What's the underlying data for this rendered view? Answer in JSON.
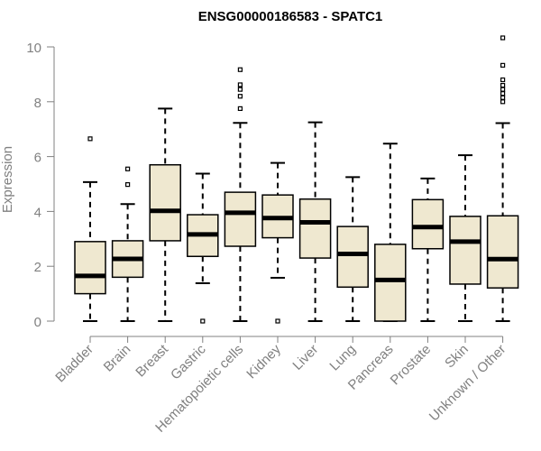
{
  "chart_data": {
    "type": "box",
    "title": "ENSG00000186583 - SPATC1",
    "xlabel": "",
    "ylabel": "Expression",
    "ylim": [
      0,
      10.4
    ],
    "yticks": [
      0,
      2,
      4,
      6,
      8,
      10
    ],
    "grid": false,
    "legend": "none",
    "box_fill": "#efe8d0",
    "categories": [
      "Bladder",
      "Brain",
      "Breast",
      "Gastric",
      "Hematopoietic cells",
      "Kidney",
      "Liver",
      "Lung",
      "Pancreas",
      "Prostate",
      "Skin",
      "Unknown / Other"
    ],
    "boxes": [
      {
        "min": 0.0,
        "q1": 1.0,
        "median": 1.65,
        "q3": 2.9,
        "max": 5.07,
        "outliers": [
          6.65
        ]
      },
      {
        "min": 0.0,
        "q1": 1.6,
        "median": 2.27,
        "q3": 2.93,
        "max": 4.27,
        "outliers": [
          4.98,
          5.55
        ]
      },
      {
        "min": 0.0,
        "q1": 2.93,
        "median": 4.02,
        "q3": 5.7,
        "max": 7.75,
        "outliers": []
      },
      {
        "min": 1.38,
        "q1": 2.36,
        "median": 3.16,
        "q3": 3.88,
        "max": 5.38,
        "outliers": [
          0.0
        ]
      },
      {
        "min": 0.0,
        "q1": 2.73,
        "median": 3.95,
        "q3": 4.7,
        "max": 7.23,
        "outliers": [
          7.75,
          8.2,
          8.45,
          8.62,
          9.17
        ]
      },
      {
        "min": 1.58,
        "q1": 3.04,
        "median": 3.76,
        "q3": 4.6,
        "max": 5.77,
        "outliers": [
          0.0
        ]
      },
      {
        "min": 0.0,
        "q1": 2.3,
        "median": 3.6,
        "q3": 4.45,
        "max": 7.25,
        "outliers": []
      },
      {
        "min": 0.0,
        "q1": 1.24,
        "median": 2.45,
        "q3": 3.45,
        "max": 5.25,
        "outliers": []
      },
      {
        "min": 0.0,
        "q1": 0.0,
        "median": 1.5,
        "q3": 2.8,
        "max": 6.47,
        "outliers": []
      },
      {
        "min": 0.0,
        "q1": 2.64,
        "median": 3.43,
        "q3": 4.43,
        "max": 5.2,
        "outliers": []
      },
      {
        "min": 0.0,
        "q1": 1.35,
        "median": 2.9,
        "q3": 3.82,
        "max": 6.05,
        "outliers": []
      },
      {
        "min": 0.0,
        "q1": 1.21,
        "median": 2.26,
        "q3": 3.84,
        "max": 7.22,
        "outliers": [
          8.0,
          8.15,
          8.3,
          8.45,
          8.6,
          8.8,
          9.33,
          10.33
        ]
      }
    ]
  }
}
